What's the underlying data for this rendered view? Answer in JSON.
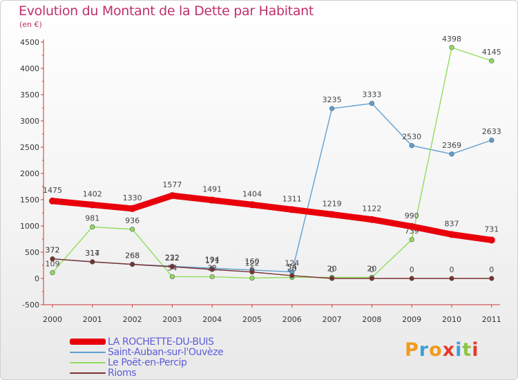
{
  "header": {
    "title": "Evolution du Montant de la Dette par Habitant",
    "subtitle": "(en €)"
  },
  "logo": {
    "text": "Proxiti",
    "colors": [
      "#f29a1e",
      "#3aa1d9",
      "#f29a1e",
      "#e23b2e",
      "#3aa1d9",
      "#8cc63f",
      "#e23b2e"
    ]
  },
  "chart_data": {
    "type": "line",
    "title": "Evolution du Montant de la Dette par Habitant",
    "subtitle": "(en €)",
    "categories": [
      "2000",
      "2001",
      "2002",
      "2003",
      "2004",
      "2005",
      "2006",
      "2007",
      "2008",
      "2009",
      "2010",
      "2011"
    ],
    "ylim": [
      -500,
      4500
    ],
    "yticks": [
      -500,
      0,
      500,
      1000,
      1500,
      2000,
      2500,
      3000,
      3500,
      4000,
      4500
    ],
    "grid": false,
    "legend_position": "bottom-left",
    "series": [
      {
        "name": "LA ROCHETTE-DU-BUIS",
        "color": "#e8000b",
        "emphasis": true,
        "values": [
          1475,
          1402,
          1330,
          1577,
          1491,
          1404,
          1311,
          1219,
          1122,
          990,
          837,
          731
        ]
      },
      {
        "name": "Saint-Auban-sur-l'Ouvèze",
        "color": "#5f9fd2",
        "emphasis": false,
        "values": [
          372,
          314,
          268,
          232,
          194,
          160,
          124,
          3235,
          3333,
          2530,
          2369,
          2633
        ]
      },
      {
        "name": "Le Poët-en-Percip",
        "color": "#8fdd5c",
        "emphasis": false,
        "values": [
          109,
          981,
          936,
          34,
          32,
          6,
          20,
          20,
          20,
          739,
          4398,
          4145
        ]
      },
      {
        "name": "Rioms",
        "color": "#7a3030",
        "emphasis": false,
        "values": [
          372,
          317,
          268,
          222,
          171,
          122,
          54,
          0,
          0,
          0,
          0,
          0
        ]
      }
    ]
  }
}
